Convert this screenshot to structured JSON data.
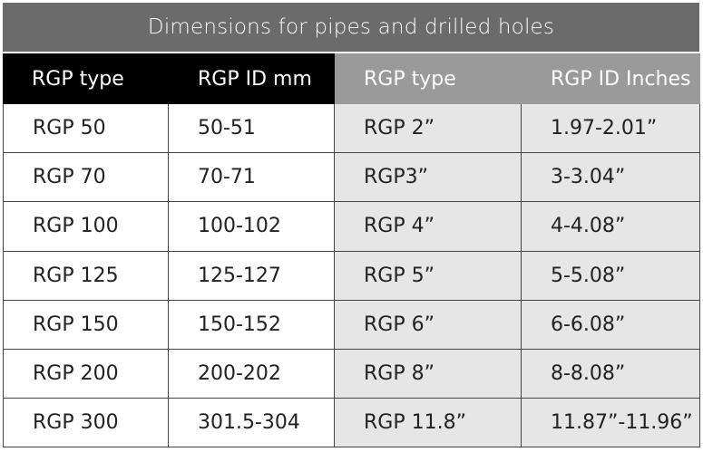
{
  "header": {
    "title": "Dimensions for pipes and drilled holes"
  },
  "table": {
    "columns": [
      "RGP type",
      "RGP ID mm",
      "RGP type",
      "RGP ID Inches"
    ],
    "rows": [
      [
        "RGP 50",
        "50-51",
        "RGP 2”",
        "1.97-2.01”"
      ],
      [
        "RGP 70",
        "70-71",
        "RGP3”",
        "3-3.04”"
      ],
      [
        "RGP 100",
        "100-102",
        "RGP 4”",
        "4-4.08”"
      ],
      [
        "RGP 125",
        "125-127",
        "RGP 5”",
        "5-5.08”"
      ],
      [
        "RGP 150",
        "150-152",
        "RGP 6”",
        "6-6.08”"
      ],
      [
        "RGP 200",
        "200-202",
        "RGP 8”",
        "8-8.08”"
      ],
      [
        "RGP 300",
        "301.5-304",
        "RGP 11.8”",
        "11.87”-11.96”"
      ]
    ]
  }
}
